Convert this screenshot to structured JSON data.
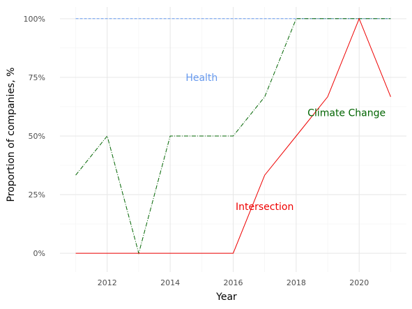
{
  "chart_data": {
    "type": "line",
    "title": "",
    "xlabel": "Year",
    "ylabel": "Proportion of companies, %",
    "xlim": [
      2010.5,
      2021.5
    ],
    "ylim": [
      -0.08,
      1.05
    ],
    "x_ticks": [
      2012,
      2014,
      2016,
      2018,
      2020
    ],
    "x_tick_labels": [
      "2012",
      "2014",
      "2016",
      "2018",
      "2020"
    ],
    "y_ticks": [
      0,
      0.25,
      0.5,
      0.75,
      1.0
    ],
    "y_tick_labels": [
      "0%",
      "25%",
      "50%",
      "75%",
      "100%"
    ],
    "grid": true,
    "legend": "none",
    "x": [
      2011,
      2012,
      2013,
      2014,
      2015,
      2016,
      2017,
      2018,
      2019,
      2020,
      2021
    ],
    "series": [
      {
        "name": "Health",
        "color": "#6699ee",
        "dash": "dashed",
        "values": [
          1,
          1,
          1,
          1,
          1,
          1,
          1,
          1,
          1,
          1,
          1
        ],
        "label_at": [
          2015.0,
          0.75
        ]
      },
      {
        "name": "Climate Change",
        "color": "#006400",
        "dash": "dashdot",
        "values": [
          0.333,
          0.5,
          0.0,
          0.5,
          0.5,
          0.5,
          0.667,
          1.0,
          1.0,
          1.0,
          1.0
        ],
        "label_at": [
          2019.6,
          0.6
        ]
      },
      {
        "name": "Intersection",
        "color": "#ee0000",
        "dash": "solid",
        "values": [
          0,
          0,
          0,
          0,
          0,
          0,
          0.333,
          0.5,
          0.667,
          1.0,
          0.667
        ],
        "label_at": [
          2017.0,
          0.2
        ]
      }
    ]
  }
}
